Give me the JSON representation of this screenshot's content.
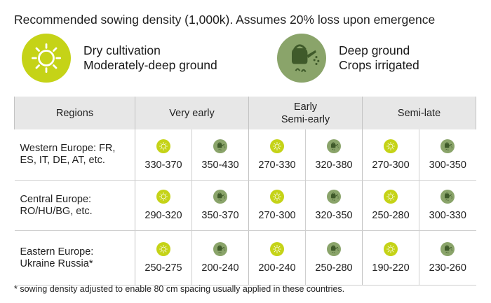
{
  "title": "Recommended sowing density (1,000k). Assumes 20% loss upon emergence",
  "colors": {
    "sun": "#c5d317",
    "irrigated": "#8aa46a",
    "header_bg": "#e7e7e7"
  },
  "legend": {
    "dry": {
      "icon": "sun-icon",
      "line1": "Dry cultivation",
      "line2": "Moderately-deep ground"
    },
    "irrigated": {
      "icon": "watering-can-icon",
      "line1": "Deep ground",
      "line2": "Crops irrigated"
    }
  },
  "table": {
    "headers": {
      "regions": "Regions",
      "very_early": "Very early",
      "early_line1": "Early",
      "early_line2": "Semi-early",
      "semi_late": "Semi-late"
    },
    "rows": [
      {
        "region_line1": "Western Europe: FR,",
        "region_line2": "ES, IT, DE, AT, etc.",
        "values": [
          "330-370",
          "350-430",
          "270-330",
          "320-380",
          "270-300",
          "300-350"
        ]
      },
      {
        "region_line1": "Central Europe:",
        "region_line2": "RO/HU/BG, etc.",
        "values": [
          "290-320",
          "350-370",
          "270-300",
          "320-350",
          "250-280",
          "300-330"
        ]
      },
      {
        "region_line1": "Eastern Europe:",
        "region_line2": "Ukraine Russia*",
        "values": [
          "250-275",
          "200-240",
          "200-240",
          "250-280",
          "190-220",
          "230-260"
        ]
      }
    ]
  },
  "footnote": "* sowing density adjusted to enable 80 cm spacing usually applied in these countries."
}
